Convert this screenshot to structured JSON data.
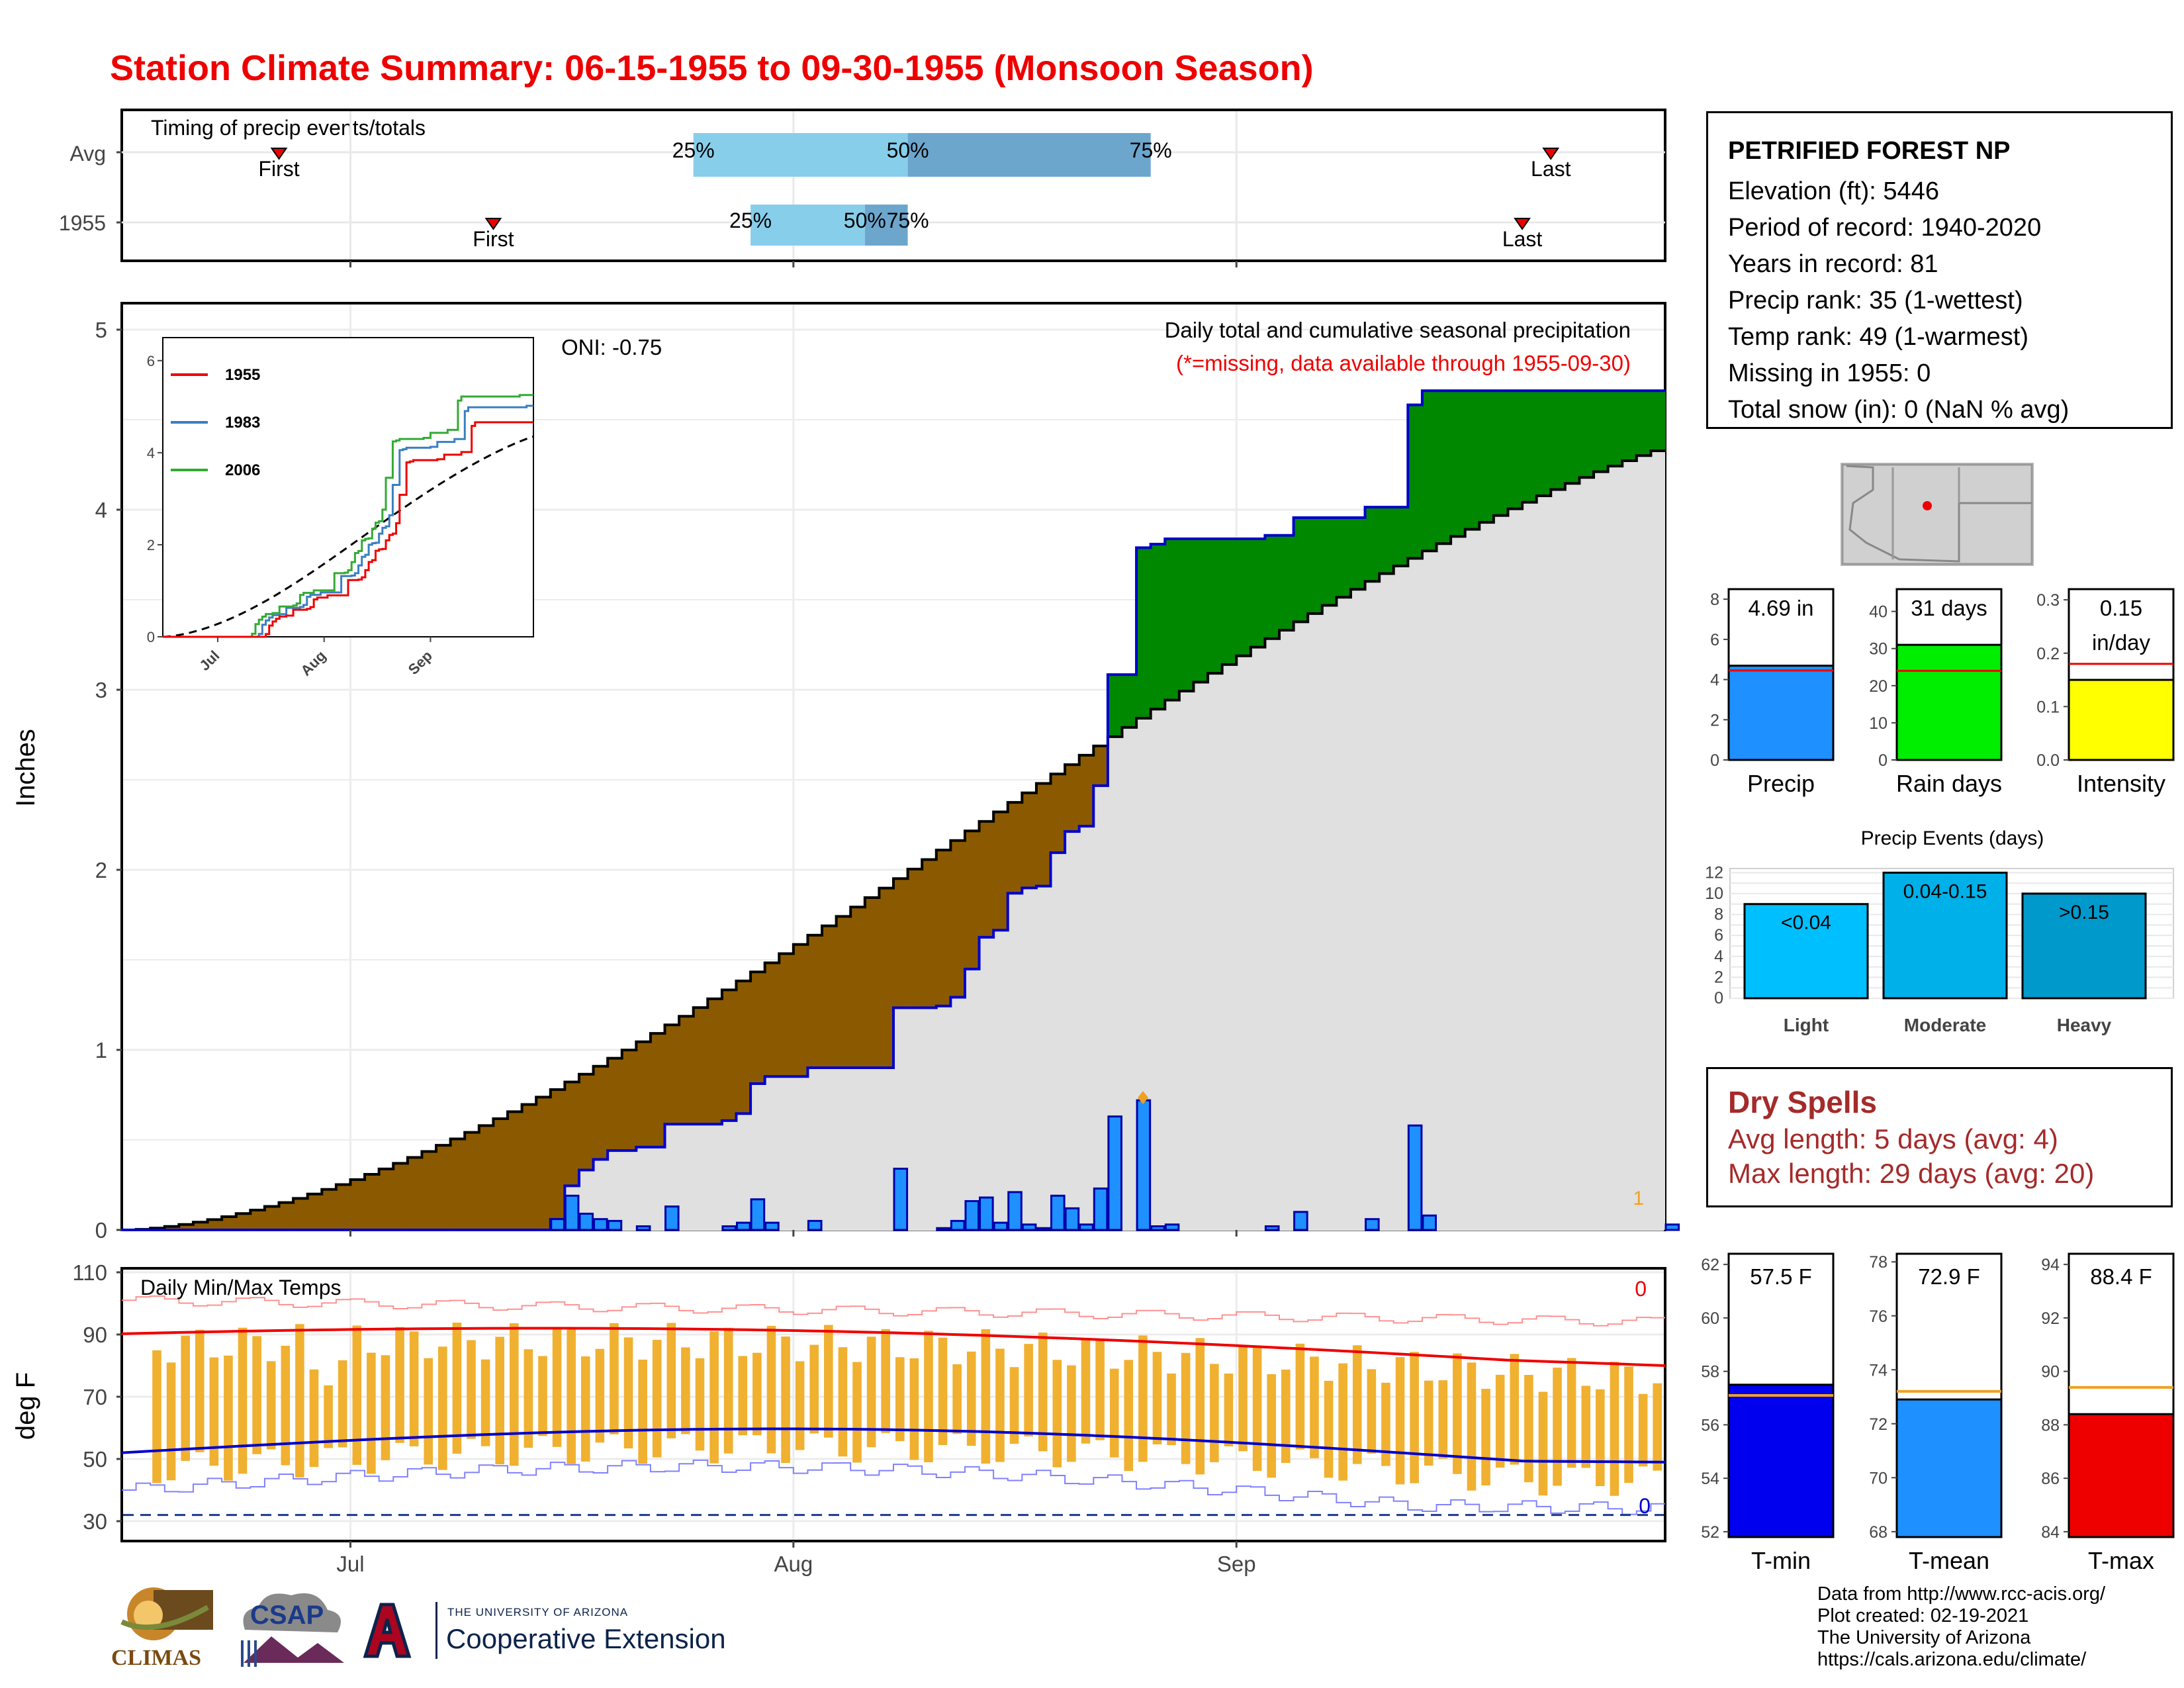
{
  "title": "Station Climate Summary: 06-15-1955 to 09-30-1955 (Monsoon Season)",
  "colors": {
    "title": "#ee0000",
    "brown": "#8b5a00",
    "green": "#008800",
    "blue_line": "#0000cc",
    "bar_blue": "#1e90ff",
    "gray_fill": "#e0e0e0",
    "temp_bar": "#f0b030",
    "red": "#ee0000"
  },
  "timing": {
    "title": "Timing of precip events/totals",
    "rows": [
      {
        "label": "Avg",
        "first": "First",
        "last": "Last",
        "p25": "25%",
        "p50": "50%",
        "p75": "75%",
        "first_day": "2023-06-26",
        "last_day": "2023-09-23",
        "q25_day": "2023-07-25",
        "q50_day": "2023-08-09",
        "q75_day": "2023-08-26"
      },
      {
        "label": "1955",
        "first": "First",
        "last": "Last",
        "p25": "25%",
        "p50": "50%",
        "p75": "75%",
        "first_day": "2023-07-11",
        "last_day": "2023-09-21",
        "q25_day": "2023-07-29",
        "q50_day": "2023-08-06",
        "q75_day": "2023-08-09"
      }
    ]
  },
  "station": {
    "name": "PETRIFIED FOREST NP",
    "lines": [
      "Elevation (ft): 5446",
      "Period of record: 1940-2020",
      "Years in record: 81",
      "Precip rank: 35 (1-wettest)",
      "Temp rank: 49 (1-warmest)",
      "Missing in 1955: 0",
      "Total snow (in): 0 (NaN % avg)"
    ]
  },
  "main_chart": {
    "ylabel": "Inches",
    "annotation_title": "Daily total and cumulative seasonal precipitation",
    "annotation_missing": "(*=missing, data available through 1955-09-30)",
    "oni": "ONI: -0.75",
    "corner_label": "1",
    "yticks": [
      "0",
      "1",
      "2",
      "3",
      "4",
      "5"
    ],
    "xticks": [
      "Jul",
      "Aug",
      "Sep"
    ]
  },
  "inset": {
    "yticks": [
      "0",
      "2",
      "4",
      "6"
    ],
    "xticks": [
      "Jul",
      "Aug",
      "Sep"
    ],
    "legend": [
      {
        "name": "1955",
        "color": "#ee0000"
      },
      {
        "name": "1983",
        "color": "#3a7fc0"
      },
      {
        "name": "2006",
        "color": "#33aa33"
      }
    ]
  },
  "precip_bars": [
    {
      "label": "Precip",
      "value_label": "4.69 in",
      "value": 4.69,
      "avg": 4.45,
      "ymax": 8.5,
      "ticks": [
        "0",
        "2",
        "4",
        "6",
        "8"
      ],
      "color": "#1e90ff"
    },
    {
      "label": "Rain days",
      "value_label": "31 days",
      "value": 31,
      "avg": 24,
      "ymax": 46,
      "ticks": [
        "0",
        "10",
        "20",
        "30",
        "40"
      ],
      "color": "#00ee00"
    },
    {
      "label": "Intensity",
      "value_label": "0.15",
      "value_label2": "in/day",
      "value": 0.15,
      "avg": 0.18,
      "ymax": 0.32,
      "ticks": [
        "0.0",
        "0.1",
        "0.2",
        "0.3"
      ],
      "color": "#ffff00"
    }
  ],
  "events": {
    "title": "Precip Events (days)",
    "ticks": [
      "0",
      "2",
      "4",
      "6",
      "8",
      "10",
      "12"
    ],
    "bars": [
      {
        "label": "Light",
        "value_label": "<0.04",
        "value": 9,
        "color": "#00bfff"
      },
      {
        "label": "Moderate",
        "value_label": "0.04-0.15",
        "value": 12,
        "color": "#00b0e8"
      },
      {
        "label": "Heavy",
        "value_label": ">0.15",
        "value": 10,
        "color": "#0099cc"
      }
    ]
  },
  "dry_spells": {
    "title": "Dry Spells",
    "avg_line": "Avg length: 5 days (avg: 4)",
    "max_line": "Max length: 29 days (avg: 20)"
  },
  "temp_chart": {
    "title": "Daily Min/Max Temps",
    "ylabel": "deg F",
    "yticks": [
      "110",
      "90",
      "70",
      "50",
      "30"
    ],
    "top_label": "0",
    "bottom_label": "0"
  },
  "temp_bars": [
    {
      "label": "T-min",
      "value_label": "57.5 F",
      "value": 57.5,
      "avg": 57.1,
      "ymin": 51.8,
      "ymax": 62.4,
      "ticks": [
        "52",
        "54",
        "56",
        "58",
        "60",
        "62"
      ],
      "color": "#0000ee"
    },
    {
      "label": "T-mean",
      "value_label": "72.9 F",
      "value": 72.9,
      "avg": 73.2,
      "ymin": 67.8,
      "ymax": 78.3,
      "ticks": [
        "68",
        "70",
        "72",
        "74",
        "76",
        "78"
      ],
      "color": "#1e90ff"
    },
    {
      "label": "T-max",
      "value_label": "88.4 F",
      "value": 88.4,
      "avg": 89.4,
      "ymin": 83.8,
      "ymax": 94.4,
      "ticks": [
        "84",
        "86",
        "88",
        "90",
        "92",
        "94"
      ],
      "color": "#ee0000"
    }
  ],
  "footer": [
    "Data from http://www.rcc-acis.org/",
    "Plot created: 02-19-2021",
    "The University of Arizona",
    "https://cals.arizona.edu/climate/"
  ],
  "logos": {
    "climas": "CLIMAS",
    "csap": "CSAP",
    "ua_small": "THE UNIVERSITY OF ARIZONA",
    "ua_big": "Cooperative Extension"
  }
}
